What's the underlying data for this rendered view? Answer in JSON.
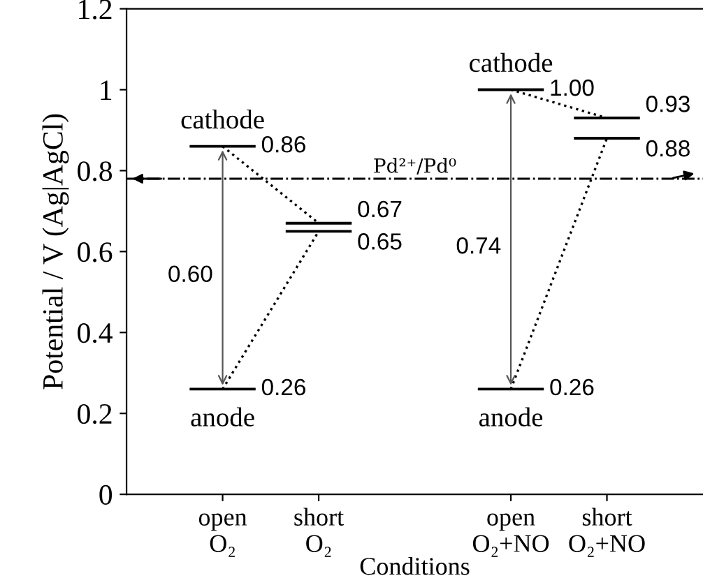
{
  "chart_data": {
    "type": "line",
    "xlabel": "Conditions",
    "ylabel": "Potential / V (Ag|AgCl)",
    "categories": [
      null,
      "open\nO₂",
      "short\nO₂",
      null,
      "open\nO₂+NO",
      "short\nO₂+NO"
    ],
    "series": [
      {
        "color": "#000000",
        "values": [
          null,
          0.86,
          0.67,
          null,
          1.0,
          0.93
        ],
        "value_labels": [
          null,
          "0.86",
          "0.67",
          null,
          "1.00",
          "0.93"
        ]
      },
      {
        "color": "#000000",
        "values": [
          null,
          0.26,
          0.65,
          null,
          0.26,
          0.88
        ],
        "value_labels": [
          null,
          "0.26",
          "0.65",
          null,
          "0.26",
          "0.88"
        ]
      }
    ],
    "line_style": "dotted",
    "ylim": [
      0,
      1.2
    ],
    "yticks": [
      0,
      0.2,
      0.4,
      0.6,
      0.8,
      1,
      1.2
    ],
    "ref_lines": [
      {
        "axis": "y",
        "value": 0.78,
        "label": "Pd²⁺/Pd⁰",
        "line_style": "dashdot"
      }
    ],
    "annotations": [
      "cathode",
      "anode",
      "0.60",
      "cathode",
      "anode",
      "0.74"
    ],
    "grid": false
  }
}
